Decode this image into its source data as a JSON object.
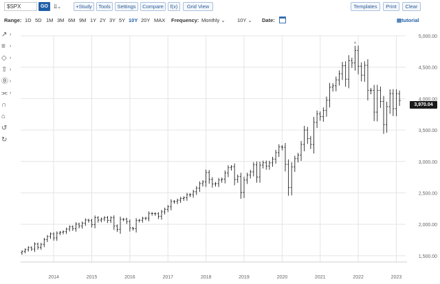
{
  "toolbar": {
    "symbol": "$SPX",
    "go_label": "GO",
    "chart_type_icon": "bar-chart-icon",
    "buttons_left": [
      "+Study",
      "Tools",
      "Settings",
      "Compare",
      "f(x)",
      "Grid View"
    ],
    "buttons_right": [
      "Templates",
      "Print",
      "Clear"
    ]
  },
  "range": {
    "label": "Range:",
    "options": [
      "1D",
      "5D",
      "1M",
      "3M",
      "6M",
      "9M",
      "1Y",
      "2Y",
      "3Y",
      "5Y",
      "10Y",
      "20Y",
      "MAX"
    ],
    "active": "10Y",
    "frequency_label": "Frequency:",
    "frequency_value": "Monthly",
    "period_value": "10Y",
    "date_label": "Date:",
    "tutorial_label": "tutorial"
  },
  "tools": [
    "line-draw-icon",
    "fibonacci-icon",
    "shape-icon",
    "arrow-up-icon",
    "annotation-icon",
    "pattern-icon",
    "magnet-icon",
    "lock-icon",
    "undo-icon",
    "redo-icon"
  ],
  "colors": {
    "accent": "#1f5fa8",
    "bars": "#222222",
    "grid": "#e4e4e4",
    "price_tag": "#1a1a1a"
  },
  "chart_data": {
    "type": "bar",
    "frequency": "Monthly",
    "x_labels": [
      "2014",
      "2015",
      "2016",
      "2017",
      "2018",
      "2019",
      "2020",
      "2021",
      "2022",
      "2023"
    ],
    "y_ticks": [
      "1,500.00",
      "2,000.00",
      "2,500.00",
      "3,000.00",
      "3,500.00",
      "4,000.00",
      "4,500.00",
      "5,000.00"
    ],
    "ylim": [
      1400,
      5000
    ],
    "last_price": "3,970.04",
    "start": "2013-03",
    "closes": [
      1569,
      1598,
      1631,
      1606,
      1686,
      1633,
      1682,
      1757,
      1806,
      1848,
      1783,
      1859,
      1873,
      1884,
      1924,
      1960,
      1931,
      2003,
      1972,
      2018,
      2068,
      2059,
      1995,
      2105,
      2067,
      2086,
      2107,
      2063,
      2104,
      1972,
      1920,
      2079,
      2080,
      2044,
      1940,
      1932,
      2060,
      2065,
      2097,
      2099,
      2174,
      2171,
      2168,
      2126,
      2199,
      2239,
      2279,
      2364,
      2363,
      2384,
      2412,
      2423,
      2470,
      2472,
      2519,
      2575,
      2648,
      2674,
      2823,
      2714,
      2641,
      2648,
      2705,
      2718,
      2816,
      2902,
      2914,
      2712,
      2760,
      2507,
      2704,
      2784,
      2834,
      2946,
      2752,
      2942,
      2980,
      2926,
      2977,
      3038,
      3141,
      3231,
      3226,
      2954,
      2585,
      2912,
      3044,
      3100,
      3271,
      3500,
      3363,
      3270,
      3622,
      3756,
      3714,
      3811,
      3973,
      4181,
      4204,
      4298,
      4395,
      4523,
      4308,
      4605,
      4567,
      4766,
      4516,
      4374,
      4530,
      4132,
      4132,
      3785,
      4130,
      3955,
      3586,
      3872,
      4080,
      3840,
      4077,
      3970
    ]
  }
}
